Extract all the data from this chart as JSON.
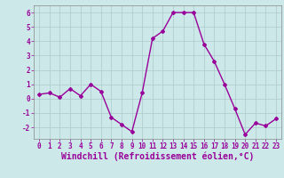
{
  "x": [
    0,
    1,
    2,
    3,
    4,
    5,
    6,
    7,
    8,
    9,
    10,
    11,
    12,
    13,
    14,
    15,
    16,
    17,
    18,
    19,
    20,
    21,
    22,
    23
  ],
  "y": [
    0.3,
    0.4,
    0.1,
    0.7,
    0.2,
    1.0,
    0.5,
    -1.3,
    -1.8,
    -2.3,
    0.4,
    4.2,
    4.7,
    6.0,
    6.0,
    6.0,
    3.8,
    2.6,
    1.0,
    -0.7,
    -2.5,
    -1.7,
    -1.9,
    -1.4
  ],
  "line_color": "#990099",
  "marker": "D",
  "marker_size": 2,
  "bg_color": "#cce8e8",
  "grid_color": "#aacccc",
  "xlabel": "Windchill (Refroidissement éolien,°C)",
  "xlabel_color": "#990099",
  "ylim": [
    -2.8,
    6.5
  ],
  "xlim": [
    -0.5,
    23.5
  ],
  "yticks": [
    -2,
    -1,
    0,
    1,
    2,
    3,
    4,
    5,
    6
  ],
  "xticks": [
    0,
    1,
    2,
    3,
    4,
    5,
    6,
    7,
    8,
    9,
    10,
    11,
    12,
    13,
    14,
    15,
    16,
    17,
    18,
    19,
    20,
    21,
    22,
    23
  ],
  "tick_label_fontsize": 5.5,
  "xlabel_fontsize": 7.0,
  "line_width": 1.0
}
